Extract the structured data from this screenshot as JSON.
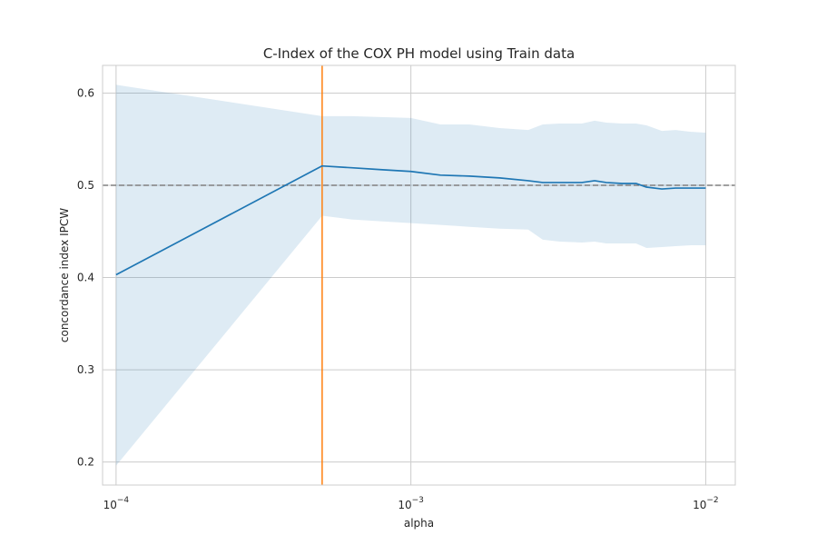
{
  "chart_data": {
    "type": "line",
    "title": "C-Index of the COX PH model using Train data",
    "xlabel": "alpha",
    "ylabel": "concordance index IPCW",
    "xscale": "log",
    "xlim": [
      9e-05,
      0.0126
    ],
    "ylim": [
      0.175,
      0.63
    ],
    "grid": true,
    "x_ticks": [
      {
        "value": 0.0001,
        "base": "10",
        "exp": "−4"
      },
      {
        "value": 0.001,
        "base": "10",
        "exp": "−3"
      },
      {
        "value": 0.01,
        "base": "10",
        "exp": "−2"
      }
    ],
    "y_ticks": [
      {
        "value": 0.2,
        "label": "0.2"
      },
      {
        "value": 0.3,
        "label": "0.3"
      },
      {
        "value": 0.4,
        "label": "0.4"
      },
      {
        "value": 0.5,
        "label": "0.5"
      },
      {
        "value": 0.6,
        "label": "0.6"
      }
    ],
    "series": [
      {
        "color": "#1f77b4",
        "band_color": "#1f77b4",
        "band_opacity": 0.15,
        "points": [
          {
            "x": 0.0001,
            "y": 0.403,
            "lower": 0.196,
            "upper": 0.609
          },
          {
            "x": 0.0005,
            "y": 0.521,
            "lower": 0.467,
            "upper": 0.575
          },
          {
            "x": 0.00063,
            "y": 0.519,
            "lower": 0.463,
            "upper": 0.575
          },
          {
            "x": 0.00079,
            "y": 0.517,
            "lower": 0.461,
            "upper": 0.574
          },
          {
            "x": 0.001,
            "y": 0.515,
            "lower": 0.459,
            "upper": 0.573
          },
          {
            "x": 0.00126,
            "y": 0.511,
            "lower": 0.457,
            "upper": 0.566
          },
          {
            "x": 0.00158,
            "y": 0.51,
            "lower": 0.455,
            "upper": 0.566
          },
          {
            "x": 0.002,
            "y": 0.508,
            "lower": 0.453,
            "upper": 0.562
          },
          {
            "x": 0.0025,
            "y": 0.505,
            "lower": 0.452,
            "upper": 0.56
          },
          {
            "x": 0.0028,
            "y": 0.503,
            "lower": 0.441,
            "upper": 0.566
          },
          {
            "x": 0.0032,
            "y": 0.503,
            "lower": 0.439,
            "upper": 0.567
          },
          {
            "x": 0.0038,
            "y": 0.503,
            "lower": 0.438,
            "upper": 0.567
          },
          {
            "x": 0.0042,
            "y": 0.505,
            "lower": 0.439,
            "upper": 0.57
          },
          {
            "x": 0.0046,
            "y": 0.503,
            "lower": 0.437,
            "upper": 0.568
          },
          {
            "x": 0.0052,
            "y": 0.502,
            "lower": 0.437,
            "upper": 0.567
          },
          {
            "x": 0.0058,
            "y": 0.502,
            "lower": 0.437,
            "upper": 0.567
          },
          {
            "x": 0.0063,
            "y": 0.498,
            "lower": 0.432,
            "upper": 0.565
          },
          {
            "x": 0.0071,
            "y": 0.496,
            "lower": 0.433,
            "upper": 0.559
          },
          {
            "x": 0.0079,
            "y": 0.497,
            "lower": 0.434,
            "upper": 0.56
          },
          {
            "x": 0.0089,
            "y": 0.497,
            "lower": 0.435,
            "upper": 0.558
          },
          {
            "x": 0.01,
            "y": 0.497,
            "lower": 0.435,
            "upper": 0.557
          }
        ]
      }
    ],
    "reference_lines": [
      {
        "orientation": "horizontal",
        "value": 0.5,
        "color": "#808080",
        "style": "dashed"
      },
      {
        "orientation": "vertical",
        "value": 0.0005,
        "color": "#ff7f0e",
        "style": "solid"
      }
    ]
  }
}
